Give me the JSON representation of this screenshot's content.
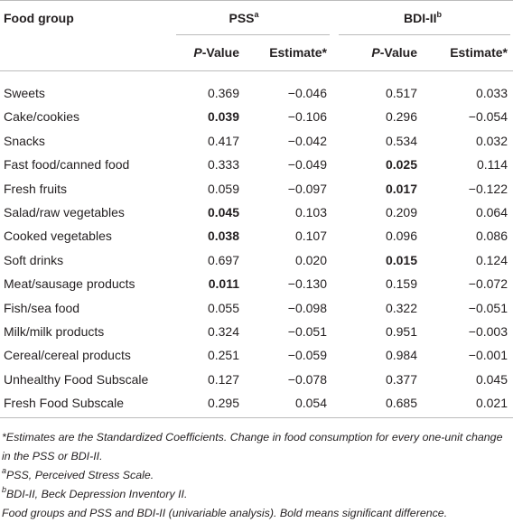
{
  "header": {
    "first": "Food group",
    "groups": [
      {
        "text": "PSS",
        "sup": "a"
      },
      {
        "text": "BDI-II",
        "sup": "b"
      }
    ],
    "subheads": [
      {
        "italic": "P",
        "text": "-Value"
      },
      {
        "text": "Estimate*"
      },
      {
        "italic": "P",
        "text": "-Value"
      },
      {
        "text": "Estimate*"
      }
    ]
  },
  "table": {
    "rows": [
      [
        "Sweets",
        "0.369",
        "−0.046",
        "0.517",
        "0.033"
      ],
      [
        "Cake/cookies",
        {
          "text": "0.039",
          "bold": true
        },
        "−0.106",
        "0.296",
        "−0.054"
      ],
      [
        "Snacks",
        "0.417",
        "−0.042",
        "0.534",
        "0.032"
      ],
      [
        "Fast food/canned food",
        "0.333",
        "−0.049",
        {
          "text": "0.025",
          "bold": true
        },
        "0.114"
      ],
      [
        "Fresh fruits",
        "0.059",
        "−0.097",
        {
          "text": "0.017",
          "bold": true
        },
        "−0.122"
      ],
      [
        "Salad/raw vegetables",
        {
          "text": "0.045",
          "bold": true
        },
        "0.103",
        "0.209",
        "0.064"
      ],
      [
        "Cooked vegetables",
        {
          "text": "0.038",
          "bold": true
        },
        "0.107",
        "0.096",
        "0.086"
      ],
      [
        "Soft drinks",
        "0.697",
        "0.020",
        {
          "text": "0.015",
          "bold": true
        },
        "0.124"
      ],
      [
        "Meat/sausage products",
        {
          "text": "0.011",
          "bold": true
        },
        "−0.130",
        "0.159",
        "−0.072"
      ],
      [
        "Fish/sea food",
        "0.055",
        "−0.098",
        "0.322",
        "−0.051"
      ],
      [
        "Milk/milk products",
        "0.324",
        "−0.051",
        "0.951",
        "−0.003"
      ],
      [
        "Cereal/cereal products",
        "0.251",
        "−0.059",
        "0.984",
        "−0.001"
      ],
      [
        "Unhealthy Food Subscale",
        "0.127",
        "−0.078",
        "0.377",
        "0.045"
      ],
      [
        "Fresh Food Subscale",
        "0.295",
        "0.054",
        "0.685",
        "0.021"
      ]
    ]
  },
  "footnotes": [
    {
      "text": "*Estimates are the Standardized Coefficients. Change in food consumption for every one-unit change in the PSS or BDI-II."
    },
    {
      "sup": "a",
      "text": "PSS, Perceived Stress Scale."
    },
    {
      "sup": "b",
      "text": "BDI-II, Beck Depression Inventory II."
    },
    {
      "text": "Food groups and PSS and BDI-II (univariable analysis). Bold means significant difference."
    }
  ]
}
